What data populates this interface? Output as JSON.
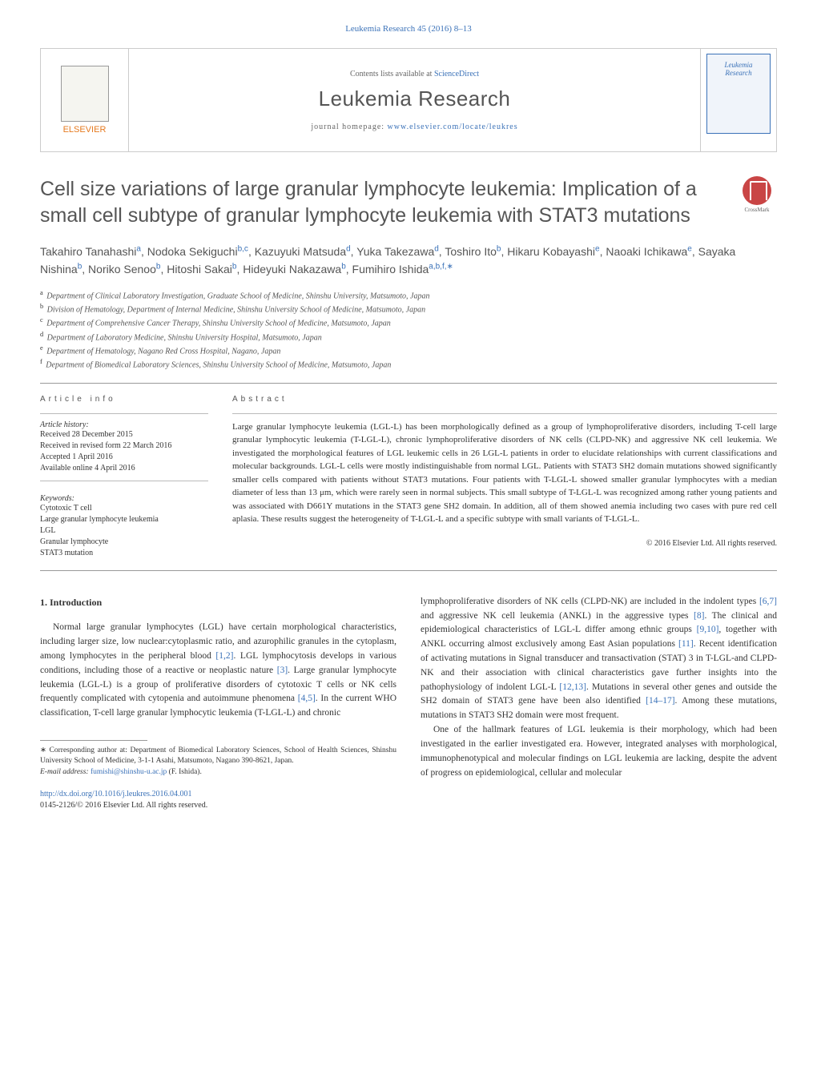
{
  "journal_ref": "Leukemia Research 45 (2016) 8–13",
  "header": {
    "publisher_name": "ELSEVIER",
    "contents_prefix": "Contents lists available at ",
    "contents_link": "ScienceDirect",
    "journal_title": "Leukemia Research",
    "homepage_prefix": "journal homepage: ",
    "homepage_url": "www.elsevier.com/locate/leukres",
    "cover_title_line1": "Leukemia",
    "cover_title_line2": "Research"
  },
  "crossmark_label": "CrossMark",
  "article_title": "Cell size variations of large granular lymphocyte leukemia: Implication of a small cell subtype of granular lymphocyte leukemia with STAT3 mutations",
  "authors_html": "Takahiro Tanahashi<sup>a</sup>, Nodoka Sekiguchi<sup>b,c</sup>, Kazuyuki Matsuda<sup>d</sup>, Yuka Takezawa<sup>d</sup>, Toshiro Ito<sup>b</sup>, Hikaru Kobayashi<sup>e</sup>, Naoaki Ichikawa<sup>e</sup>, Sayaka Nishina<sup>b</sup>, Noriko Senoo<sup>b</sup>, Hitoshi Sakai<sup>b</sup>, Hideyuki Nakazawa<sup>b</sup>, Fumihiro Ishida<sup>a,b,f,∗</sup>",
  "affiliations": [
    {
      "sup": "a",
      "text": "Department of Clinical Laboratory Investigation, Graduate School of Medicine, Shinshu University, Matsumoto, Japan"
    },
    {
      "sup": "b",
      "text": "Division of Hematology, Department of Internal Medicine, Shinshu University School of Medicine, Matsumoto, Japan"
    },
    {
      "sup": "c",
      "text": "Department of Comprehensive Cancer Therapy, Shinshu University School of Medicine, Matsumoto, Japan"
    },
    {
      "sup": "d",
      "text": "Department of Laboratory Medicine, Shinshu University Hospital, Matsumoto, Japan"
    },
    {
      "sup": "e",
      "text": "Department of Hematology, Nagano Red Cross Hospital, Nagano, Japan"
    },
    {
      "sup": "f",
      "text": "Department of Biomedical Laboratory Sciences, Shinshu University School of Medicine, Matsumoto, Japan"
    }
  ],
  "article_info_heading": "article info",
  "abstract_heading": "abstract",
  "history": {
    "label": "Article history:",
    "items": [
      "Received 28 December 2015",
      "Received in revised form 22 March 2016",
      "Accepted 1 April 2016",
      "Available online 4 April 2016"
    ]
  },
  "keywords": {
    "label": "Keywords:",
    "items": [
      "Cytotoxic T cell",
      "Large granular lymphocyte leukemia",
      "LGL",
      "Granular lymphocyte",
      "STAT3 mutation"
    ]
  },
  "abstract_text": "Large granular lymphocyte leukemia (LGL-L) has been morphologically defined as a group of lymphoproliferative disorders, including T-cell large granular lymphocytic leukemia (T-LGL-L), chronic lymphoproliferative disorders of NK cells (CLPD-NK) and aggressive NK cell leukemia. We investigated the morphological features of LGL leukemic cells in 26 LGL-L patients in order to elucidate relationships with current classifications and molecular backgrounds. LGL-L cells were mostly indistinguishable from normal LGL. Patients with STAT3 SH2 domain mutations showed significantly smaller cells compared with patients without STAT3 mutations. Four patients with T-LGL-L showed smaller granular lymphocytes with a median diameter of less than 13 μm, which were rarely seen in normal subjects. This small subtype of T-LGL-L was recognized among rather young patients and was associated with D661Y mutations in the STAT3 gene SH2 domain. In addition, all of them showed anemia including two cases with pure red cell aplasia. These results suggest the heterogeneity of T-LGL-L and a specific subtype with small variants of T-LGL-L.",
  "abstract_copyright": "© 2016 Elsevier Ltd. All rights reserved.",
  "intro_heading": "1. Introduction",
  "body_col1": "Normal large granular lymphocytes (LGL) have certain morphological characteristics, including larger size, low nuclear:cytoplasmic ratio, and azurophilic granules in the cytoplasm, among lymphocytes in the peripheral blood [1,2]. LGL lymphocytosis develops in various conditions, including those of a reactive or neoplastic nature [3]. Large granular lymphocyte leukemia (LGL-L) is a group of proliferative disorders of cytotoxic T cells or NK cells frequently complicated with cytopenia and autoimmune phenomena [4,5]. In the current WHO classification, T-cell large granular lymphocytic leukemia (T-LGL-L) and chronic",
  "body_col2_p1": "lymphoproliferative disorders of NK cells (CLPD-NK) are included in the indolent types [6,7] and aggressive NK cell leukemia (ANKL) in the aggressive types [8]. The clinical and epidemiological characteristics of LGL-L differ among ethnic groups [9,10], together with ANKL occurring almost exclusively among East Asian populations [11]. Recent identification of activating mutations in Signal transducer and transactivation (STAT) 3 in T-LGL-and CLPD-NK and their association with clinical characteristics gave further insights into the pathophysiology of indolent LGL-L [12,13]. Mutations in several other genes and outside the SH2 domain of STAT3 gene have been also identified [14–17]. Among these mutations, mutations in STAT3 SH2 domain were most frequent.",
  "body_col2_p2": "One of the hallmark features of LGL leukemia is their morphology, which had been investigated in the earlier investigated era. However, integrated analyses with morphological, immunophenotypical and molecular findings on LGL leukemia are lacking, despite the advent of progress on epidemiological, cellular and molecular",
  "footnote": {
    "corr": "∗ Corresponding author at: Department of Biomedical Laboratory Sciences, School of Health Sciences, Shinshu University School of Medicine, 3-1-1 Asahi, Matsumoto, Nagano 390-8621, Japan.",
    "email_label": "E-mail address: ",
    "email": "fumishi@shinshu-u.ac.jp",
    "email_paren": " (F. Ishida)."
  },
  "doi": {
    "url": "http://dx.doi.org/10.1016/j.leukres.2016.04.001",
    "issn_line": "0145-2126/© 2016 Elsevier Ltd. All rights reserved."
  },
  "ref_links_col1": {
    "r12": "[1,2]",
    "r3": "[3]",
    "r45": "[4,5]"
  },
  "ref_links_col2": {
    "r67": "[6,7]",
    "r8": "[8]",
    "r910": "[9,10]",
    "r11": "[11]",
    "r1213": "[12,13]",
    "r1417": "[14–17]"
  },
  "colors": {
    "link": "#3b72b8",
    "heading": "#555555",
    "text": "#333333",
    "accent_orange": "#e67a1f",
    "crossmark_red": "#c94545",
    "border": "#cccccc"
  }
}
